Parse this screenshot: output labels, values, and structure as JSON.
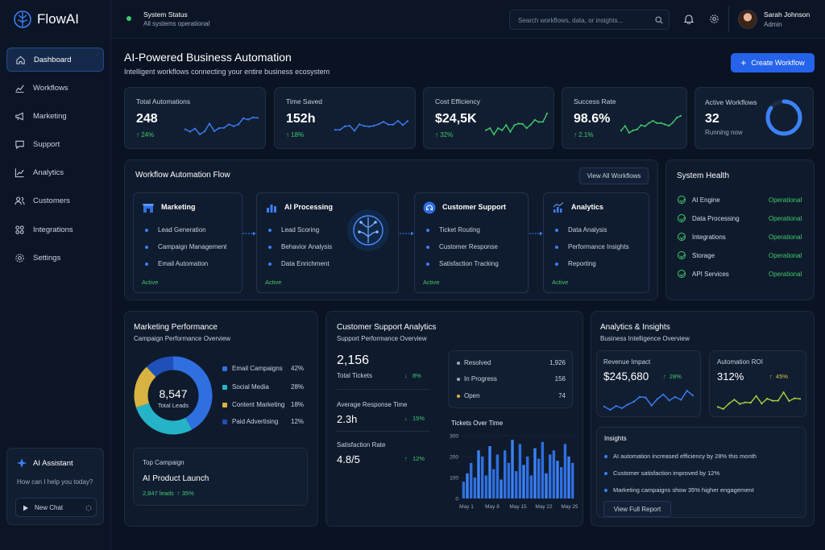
{
  "brand": {
    "name": "FlowAI"
  },
  "sidebar": {
    "items": [
      {
        "label": "Dashboard",
        "icon": "home-icon"
      },
      {
        "label": "Workflows",
        "icon": "chart-icon"
      },
      {
        "label": "Marketing",
        "icon": "megaphone-icon"
      },
      {
        "label": "Support",
        "icon": "chat-icon"
      },
      {
        "label": "Analytics",
        "icon": "analytics-icon"
      },
      {
        "label": "Customers",
        "icon": "users-icon"
      },
      {
        "label": "Integrations",
        "icon": "integrations-icon"
      },
      {
        "label": "Settings",
        "icon": "gear-icon"
      }
    ],
    "assistant": {
      "title": "AI Assistant",
      "prompt": "How can I help you today?",
      "new_chat": "New Chat"
    }
  },
  "topbar": {
    "status_title": "System Status",
    "status_text": "All systems operational",
    "search_placeholder": "Search workflows, data, or insights...",
    "user_name": "Sarah Johnson",
    "user_role": "Admin"
  },
  "page": {
    "title": "AI-Powered Business Automation",
    "subtitle": "Intelligent workflows connecting your entire business ecosystem",
    "create_button": "Create Workflow"
  },
  "kpis": [
    {
      "title": "Total Automations",
      "value": "248",
      "delta": "24%"
    },
    {
      "title": "Time Saved",
      "value": "152h",
      "delta": "18%"
    },
    {
      "title": "Cost Efficiency",
      "value": "$24,5K",
      "delta": "32%"
    },
    {
      "title": "Success Rate",
      "value": "98.6%",
      "delta": "2.1%"
    }
  ],
  "active_workflows": {
    "title": "Active Workflows",
    "value": "32",
    "sub": "Running now",
    "fraction": 0.85
  },
  "flow": {
    "title": "Workflow Automation Flow",
    "view_all": "View All Workflows",
    "stages": [
      {
        "title": "Marketing",
        "items": [
          "Lead Generation",
          "Campaign Management",
          "Email Automation"
        ],
        "status": "Active",
        "icon": "store-icon"
      },
      {
        "title": "AI Processing",
        "items": [
          "Lead Scoring",
          "Behavior Analysis",
          "Data Enrichment"
        ],
        "status": "Active",
        "icon": "bar-chart-icon"
      },
      {
        "title": "Customer Support",
        "items": [
          "Ticket Routing",
          "Customer Response",
          "Satisfaction Tracking"
        ],
        "status": "Active",
        "icon": "support-icon"
      },
      {
        "title": "Analytics",
        "items": [
          "Data Analysis",
          "Performance Insights",
          "Reporting"
        ],
        "status": "Active",
        "icon": "analytics-icon"
      }
    ]
  },
  "health": {
    "title": "System Health",
    "items": [
      {
        "name": "AI Engine",
        "status": "Operational"
      },
      {
        "name": "Data Processing",
        "status": "Operational"
      },
      {
        "name": "Integrations",
        "status": "Operational"
      },
      {
        "name": "Storage",
        "status": "Operational"
      },
      {
        "name": "API Services",
        "status": "Operational"
      }
    ]
  },
  "marketing": {
    "title": "Marketing Performance",
    "subtitle": "Campaign Performance Overview",
    "total": "8,547",
    "total_label": "Total Leads",
    "top_label": "Top Campaign",
    "top_name": "AI Product Launch",
    "top_leads": "2,847 leads",
    "top_delta": "35%"
  },
  "support": {
    "title": "Customer Support Analytics",
    "subtitle": "Support Performance Overview",
    "tickets": "2,156",
    "tickets_label": "Total Tickets",
    "tickets_delta": "8%",
    "resp_label": "Average Response Time",
    "resp_value": "2.3h",
    "resp_delta": "15%",
    "sat_label": "Satisfaction Rate",
    "sat_value": "4.8/5",
    "sat_delta": "12%",
    "status": [
      {
        "label": "Resolved",
        "value": "1,926",
        "color": "#9aa8bf"
      },
      {
        "label": "In Progress",
        "value": "156",
        "color": "#9aa8bf"
      },
      {
        "label": "Open",
        "value": "74",
        "color": "#e0b43c"
      }
    ]
  },
  "insights_panel": {
    "title": "Analytics & Insights",
    "subtitle": "Business Intelligence Overview",
    "revenue_label": "Revenue Impact",
    "revenue_value": "$245,680",
    "revenue_delta": "28%",
    "roi_label": "Automation ROI",
    "roi_value": "312%",
    "roi_delta": "45%",
    "insights_title": "Insights",
    "insights": [
      "AI automation increased efficiency by 28% this month",
      "Customer satisfaction improved by 12%",
      "Marketing campaigns show 35% higher engagement"
    ],
    "report_button": "View Full Report"
  },
  "chart_data": [
    {
      "type": "pie",
      "title": "",
      "categories": [
        "Email Campaigns",
        "Social Media",
        "Content Marketing",
        "Paid Advertising"
      ],
      "values": [
        42,
        28,
        18,
        12
      ],
      "labels": [
        "42%",
        "28%",
        "18%",
        "12%"
      ],
      "colors": [
        "#2f6fe0",
        "#25b3c7",
        "#d8b341",
        "#1f4fb8"
      ]
    },
    {
      "type": "bar",
      "title": "Tickets Over Time",
      "x_ticks": [
        "May 1",
        "May 8",
        "May 15",
        "May 22",
        "May 29"
      ],
      "y_ticks": [
        "0",
        "100",
        "200",
        "300"
      ],
      "ylim": [
        0,
        300
      ],
      "values": [
        80,
        120,
        170,
        100,
        230,
        200,
        110,
        250,
        140,
        210,
        90,
        230,
        170,
        280,
        130,
        260,
        160,
        200,
        110,
        240,
        190,
        270,
        120,
        210,
        230,
        180,
        150,
        260,
        200,
        170
      ]
    }
  ]
}
